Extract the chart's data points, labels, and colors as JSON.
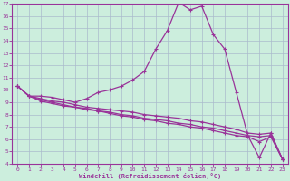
{
  "xlabel": "Windchill (Refroidissement éolien,°C)",
  "xlim": [
    -0.5,
    23.5
  ],
  "ylim": [
    4,
    17
  ],
  "yticks": [
    4,
    5,
    6,
    7,
    8,
    9,
    10,
    11,
    12,
    13,
    14,
    15,
    16,
    17
  ],
  "xticks": [
    0,
    1,
    2,
    3,
    4,
    5,
    6,
    7,
    8,
    9,
    10,
    11,
    12,
    13,
    14,
    15,
    16,
    17,
    18,
    19,
    20,
    21,
    22,
    23
  ],
  "bg_color": "#cceedd",
  "grid_color": "#aabbcc",
  "line_color": "#993399",
  "line1_y": [
    10.3,
    9.5,
    9.5,
    9.4,
    9.2,
    9.0,
    9.3,
    9.8,
    10.0,
    10.3,
    10.8,
    11.5,
    13.3,
    14.8,
    17.1,
    16.5,
    16.8,
    14.5,
    13.3,
    9.8,
    6.3,
    4.5,
    6.5,
    4.4
  ],
  "line2_y": [
    10.3,
    9.5,
    9.3,
    9.1,
    9.0,
    8.8,
    8.6,
    8.5,
    8.4,
    8.3,
    8.2,
    8.0,
    7.9,
    7.8,
    7.7,
    7.5,
    7.4,
    7.2,
    7.0,
    6.8,
    6.5,
    6.4,
    6.5,
    4.4
  ],
  "line3_y": [
    10.3,
    9.5,
    9.2,
    9.0,
    8.8,
    8.6,
    8.5,
    8.3,
    8.2,
    8.0,
    7.9,
    7.7,
    7.6,
    7.5,
    7.3,
    7.2,
    7.0,
    6.9,
    6.7,
    6.5,
    6.3,
    6.2,
    6.3,
    4.4
  ],
  "line4_y": [
    10.3,
    9.5,
    9.1,
    8.9,
    8.7,
    8.6,
    8.4,
    8.3,
    8.1,
    7.9,
    7.8,
    7.6,
    7.5,
    7.3,
    7.2,
    7.0,
    6.9,
    6.7,
    6.5,
    6.3,
    6.2,
    5.8,
    6.2,
    4.4
  ]
}
